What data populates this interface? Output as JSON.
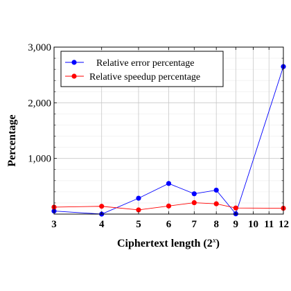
{
  "chart_data": {
    "type": "line",
    "xlabel": "Ciphertext length (2",
    "xlabel_sup": "x",
    "xlabel_close": ")",
    "ylabel": "Percentage",
    "x_scale": "log",
    "xlim": [
      3,
      12
    ],
    "ylim": [
      0,
      3000
    ],
    "x_ticks": [
      3,
      4,
      5,
      6,
      7,
      8,
      9,
      10,
      11,
      12
    ],
    "x_tick_labels": [
      "3",
      "4",
      "5",
      "6",
      "7",
      "8",
      "9",
      "10",
      "11",
      "12"
    ],
    "y_ticks": [
      1000,
      2000,
      3000
    ],
    "y_tick_labels": [
      "1,000",
      "2,000",
      "3,000"
    ],
    "grid": true,
    "legend_position": "top-left",
    "x": [
      3,
      4,
      5,
      6,
      7,
      8,
      9,
      12
    ],
    "series": [
      {
        "name": "Relative error percentage",
        "color": "#0000ff",
        "values": [
          55,
          0,
          285,
          550,
          365,
          430,
          5,
          2650
        ]
      },
      {
        "name": "Relative speedup percentage",
        "color": "#ff0000",
        "values": [
          125,
          140,
          75,
          145,
          205,
          185,
          110,
          105
        ]
      }
    ]
  }
}
